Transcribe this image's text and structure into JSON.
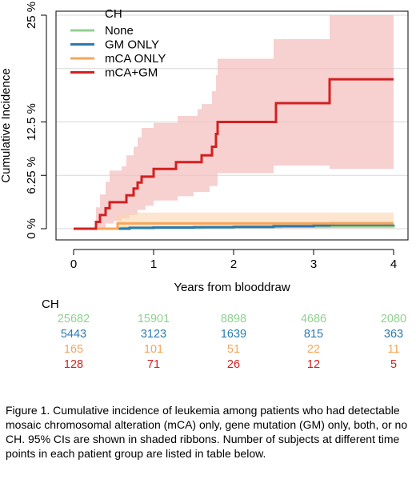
{
  "chart_data": {
    "type": "line",
    "subtype": "step",
    "xlabel": "Years from blooddraw",
    "ylabel": "Cumulative Incidence",
    "xlim": [
      0,
      4
    ],
    "ylim": [
      0,
      25
    ],
    "x_ticks": [
      {
        "value": 0,
        "label": "0"
      },
      {
        "value": 1,
        "label": "1"
      },
      {
        "value": 2,
        "label": "2"
      },
      {
        "value": 3,
        "label": "3"
      },
      {
        "value": 4,
        "label": "4"
      }
    ],
    "y_ticks": [
      {
        "value": 0,
        "label": "0 %"
      },
      {
        "value": 6.25,
        "label": "6.25 %"
      },
      {
        "value": 12.5,
        "label": "12.5 %"
      },
      {
        "value": 25,
        "label": "25 %"
      }
    ],
    "gridlines_y": [
      0,
      6.25,
      12.5,
      18.75,
      25
    ],
    "grid": true,
    "legend": {
      "title": "CH",
      "placement": "top-left",
      "entries": [
        "None",
        "GM ONLY",
        "mCA ONLY",
        "mCA+GM"
      ]
    },
    "series": [
      {
        "name": "None",
        "color": "#90d090",
        "band_color": "#c6e8c6",
        "steps": [
          [
            0,
            0
          ],
          [
            0.6,
            0.08
          ],
          [
            1.0,
            0.12
          ],
          [
            1.6,
            0.18
          ],
          [
            2.0,
            0.22
          ],
          [
            2.6,
            0.26
          ],
          [
            3.0,
            0.28
          ],
          [
            4.0,
            0.3
          ]
        ],
        "lower": [
          [
            0,
            0
          ],
          [
            0.6,
            0.04
          ],
          [
            2.0,
            0.12
          ],
          [
            4.0,
            0.16
          ]
        ],
        "upper": [
          [
            0,
            0
          ],
          [
            0.6,
            0.14
          ],
          [
            2.0,
            0.34
          ],
          [
            4.0,
            0.46
          ]
        ]
      },
      {
        "name": "GM ONLY",
        "color": "#2a7ab0",
        "band_color": "#a8c8e0",
        "steps": [
          [
            0,
            0
          ],
          [
            0.7,
            0.1
          ],
          [
            1.0,
            0.14
          ],
          [
            1.5,
            0.18
          ],
          [
            2.0,
            0.22
          ],
          [
            2.5,
            0.3
          ],
          [
            3.0,
            0.38
          ],
          [
            3.2,
            0.46
          ],
          [
            4.0,
            0.48
          ]
        ],
        "lower": [
          [
            0,
            0
          ],
          [
            0.7,
            0.03
          ],
          [
            2.0,
            0.08
          ],
          [
            3.2,
            0.18
          ],
          [
            4.0,
            0.2
          ]
        ],
        "upper": [
          [
            0,
            0
          ],
          [
            0.7,
            0.22
          ],
          [
            2.0,
            0.42
          ],
          [
            3.2,
            0.82
          ],
          [
            4.0,
            0.9
          ]
        ]
      },
      {
        "name": "mCA ONLY",
        "color": "#f6a65a",
        "band_color": "#fbd5b0",
        "steps": [
          [
            0,
            0
          ],
          [
            0.55,
            0.62
          ],
          [
            4.0,
            0.62
          ]
        ],
        "lower": [
          [
            0,
            0
          ],
          [
            0.55,
            0.05
          ],
          [
            4.0,
            0.05
          ]
        ],
        "upper": [
          [
            0,
            0
          ],
          [
            0.55,
            1.75
          ],
          [
            0.8,
            1.9
          ],
          [
            4.0,
            1.9
          ]
        ]
      },
      {
        "name": "mCA+GM",
        "color": "#d42020",
        "band_color": "#f4c0c0",
        "steps": [
          [
            0,
            0
          ],
          [
            0.28,
            0.8
          ],
          [
            0.33,
            1.6
          ],
          [
            0.4,
            2.4
          ],
          [
            0.45,
            3.1
          ],
          [
            0.6,
            3.1
          ],
          [
            0.66,
            3.9
          ],
          [
            0.75,
            4.7
          ],
          [
            0.8,
            5.4
          ],
          [
            0.85,
            6.1
          ],
          [
            0.98,
            6.1
          ],
          [
            1.0,
            7.0
          ],
          [
            1.25,
            7.0
          ],
          [
            1.28,
            7.8
          ],
          [
            1.55,
            7.8
          ],
          [
            1.6,
            8.6
          ],
          [
            1.7,
            8.6
          ],
          [
            1.73,
            9.6
          ],
          [
            1.78,
            11.1
          ],
          [
            1.8,
            12.5
          ],
          [
            2.5,
            12.5
          ],
          [
            2.53,
            14.7
          ],
          [
            3.17,
            14.7
          ],
          [
            3.2,
            17.5
          ],
          [
            4.0,
            17.5
          ]
        ],
        "lower": [
          [
            0,
            0
          ],
          [
            0.28,
            0.1
          ],
          [
            0.4,
            0.6
          ],
          [
            0.5,
            0.9
          ],
          [
            0.6,
            1.2
          ],
          [
            0.7,
            1.6
          ],
          [
            0.8,
            2.2
          ],
          [
            0.9,
            2.7
          ],
          [
            1.0,
            3.3
          ],
          [
            1.3,
            3.8
          ],
          [
            1.5,
            4.3
          ],
          [
            1.7,
            5.0
          ],
          [
            1.8,
            6.5
          ],
          [
            2.5,
            7.4
          ],
          [
            3.2,
            7.0
          ],
          [
            4.0,
            8.2
          ]
        ],
        "upper": [
          [
            0,
            0
          ],
          [
            0.28,
            2.5
          ],
          [
            0.33,
            4.0
          ],
          [
            0.4,
            5.5
          ],
          [
            0.45,
            6.8
          ],
          [
            0.6,
            7.3
          ],
          [
            0.66,
            8.6
          ],
          [
            0.75,
            9.6
          ],
          [
            0.8,
            10.7
          ],
          [
            0.85,
            11.8
          ],
          [
            1.0,
            12.4
          ],
          [
            1.3,
            13.2
          ],
          [
            1.55,
            14.0
          ],
          [
            1.6,
            14.6
          ],
          [
            1.73,
            16.1
          ],
          [
            1.78,
            18.0
          ],
          [
            1.8,
            19.9
          ],
          [
            2.5,
            22.2
          ],
          [
            3.2,
            25
          ],
          [
            4.0,
            25
          ]
        ]
      }
    ]
  },
  "risk_table": {
    "title": "CH",
    "time_points": [
      0,
      1,
      2,
      3,
      4
    ],
    "rows": [
      {
        "name": "None",
        "color": "#90d090",
        "values": [
          "25682",
          "15901",
          "8898",
          "4686",
          "2080"
        ]
      },
      {
        "name": "GM ONLY",
        "color": "#2a7ab0",
        "values": [
          "5443",
          "3123",
          "1639",
          "815",
          "363"
        ]
      },
      {
        "name": "mCA ONLY",
        "color": "#f6a65a",
        "values": [
          "165",
          "101",
          "51",
          "22",
          "11"
        ]
      },
      {
        "name": "mCA+GM",
        "color": "#d42020",
        "values": [
          "128",
          "71",
          "26",
          "12",
          "5"
        ]
      }
    ]
  },
  "caption": "Figure 1. Cumulative incidence of leukemia among patients who had detectable mosaic chromosomal alteration (mCA) only, gene mutation (GM) only, both, or no CH. 95% CIs are shown in shaded ribbons. Number of subjects at different time points in each patient group are listed in table below."
}
